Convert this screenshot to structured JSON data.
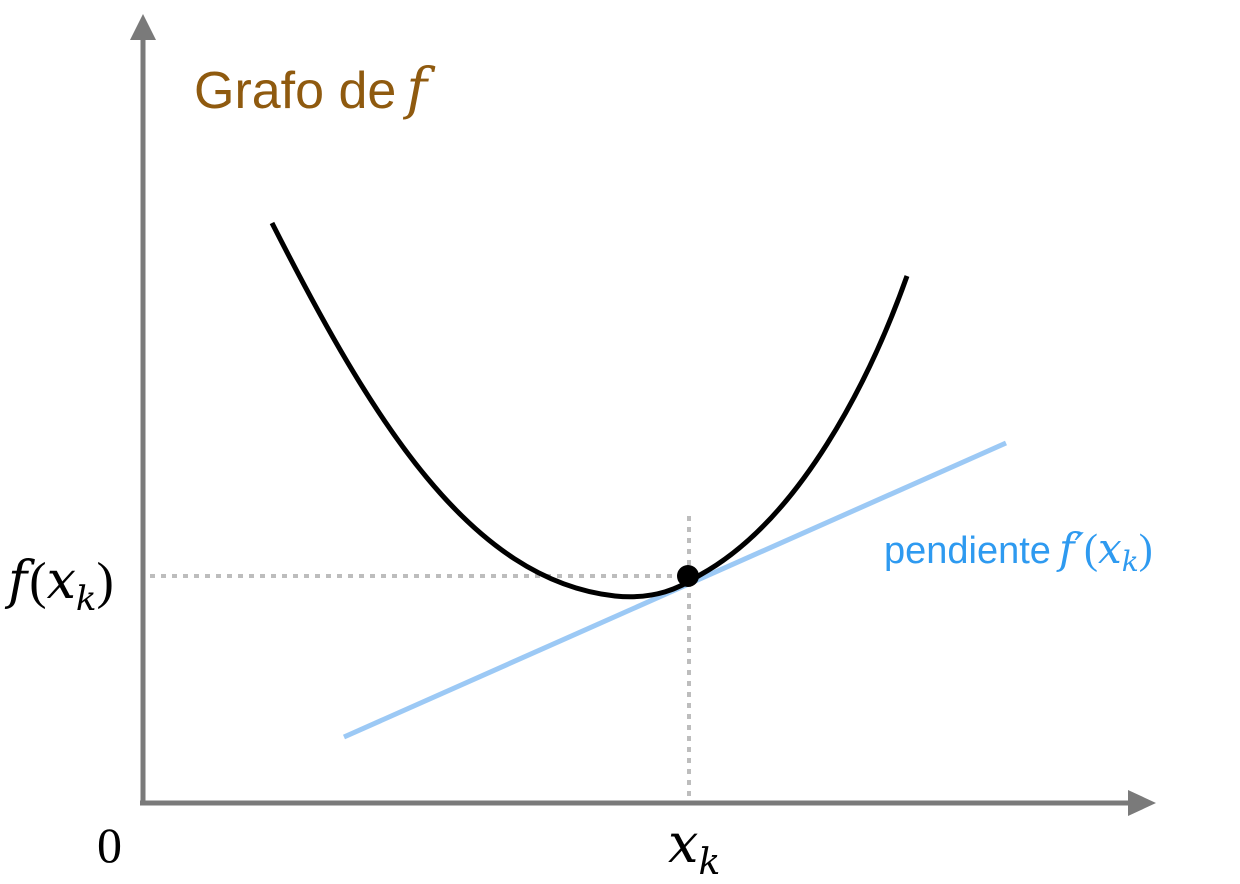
{
  "title": {
    "text": "Grafo de",
    "symbol": "f",
    "color": "#8f5a0f"
  },
  "axes": {
    "color": "#7a7a7a",
    "origin_label": "0",
    "x_label_base": "x",
    "x_label_sub": "k",
    "y_label_fn": "f",
    "y_label_open": "(",
    "y_label_x": "x",
    "y_label_sub": "k",
    "y_label_close": ")"
  },
  "tangent": {
    "label_text": "pendiente",
    "label_fn": "f′",
    "label_open": "(",
    "label_x": "x",
    "label_sub": "k",
    "label_close": ")",
    "line_color": "#9cc9f5",
    "label_color": "#2e9af0"
  },
  "colors": {
    "curve": "#000000",
    "guide": "#bdbdbd",
    "point": "#000000"
  }
}
